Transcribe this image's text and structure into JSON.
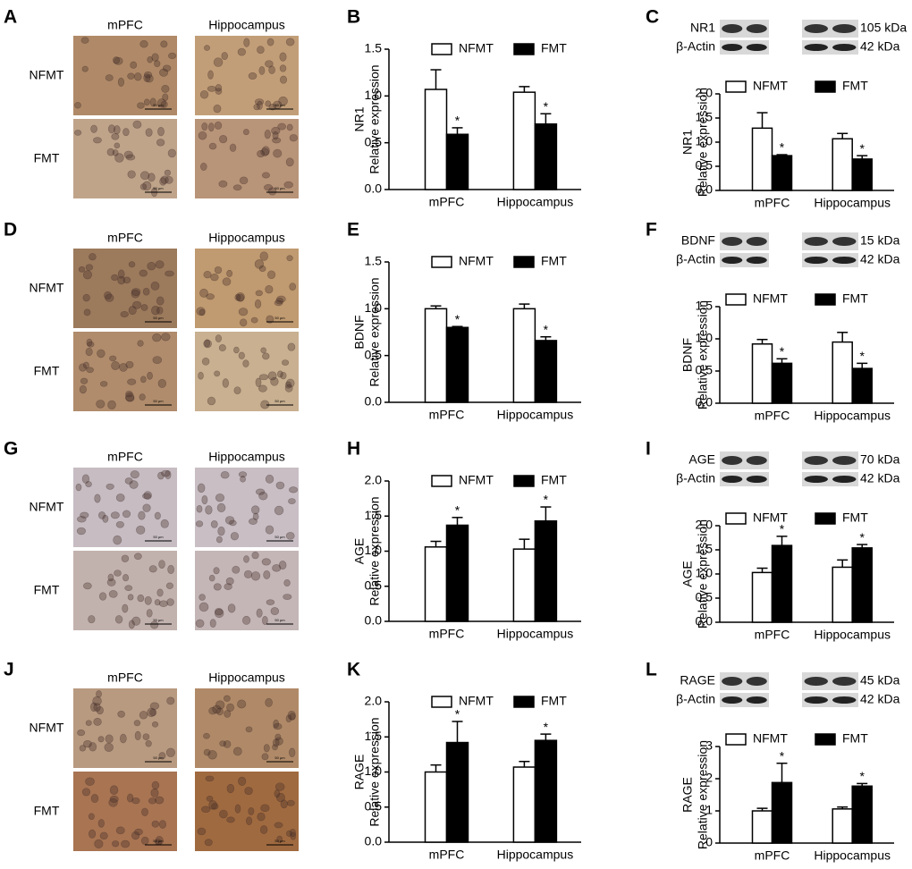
{
  "histology": [
    {
      "letter": "A",
      "columns": [
        "mPFC",
        "Hippocampus"
      ],
      "rows": [
        "NFMT",
        "FMT"
      ],
      "scale_bar": "50 μm",
      "tint": [
        "#b08a68",
        "#c29e78",
        "#bfa48a",
        "#b89478"
      ]
    },
    {
      "letter": "D",
      "columns": [
        "mPFC",
        "Hippocampus"
      ],
      "rows": [
        "NFMT",
        "FMT"
      ],
      "scale_bar": "50 μm",
      "tint": [
        "#9c7a5c",
        "#c09a70",
        "#b08c6c",
        "#c8b090"
      ]
    },
    {
      "letter": "G",
      "columns": [
        "mPFC",
        "Hippocampus"
      ],
      "rows": [
        "NFMT",
        "FMT"
      ],
      "scale_bar": "50 μm",
      "tint": [
        "#c6bcc2",
        "#c8bec4",
        "#c2b2ae",
        "#c4b6b6"
      ]
    },
    {
      "letter": "J",
      "columns": [
        "mPFC",
        "Hippocampus"
      ],
      "rows": [
        "NFMT",
        "FMT"
      ],
      "scale_bar": "50 μm",
      "tint": [
        "#b89a80",
        "#b08a68",
        "#a87452",
        "#a06a40"
      ]
    }
  ],
  "blots": [
    {
      "target": "NR1",
      "target_size": "105 kDa",
      "control": "β-Actin",
      "control_size": "42 kDa"
    },
    {
      "target": "BDNF",
      "target_size": "15 kDa",
      "control": "β-Actin",
      "control_size": "42 kDa"
    },
    {
      "target": "AGE",
      "target_size": "70 kDa",
      "control": "β-Actin",
      "control_size": "42 kDa"
    },
    {
      "target": "RAGE",
      "target_size": "45 kDa",
      "control": "β-Actin",
      "control_size": "42 kDa"
    }
  ],
  "chart_data": [
    {
      "type": "bar",
      "letter": "B",
      "ylabel": [
        "NR1",
        "Relative expression"
      ],
      "categories": [
        "mPFC",
        "Hippocampus"
      ],
      "ylim": [
        0,
        1.5
      ],
      "yticks": [
        {
          "value": 0,
          "label": "0.0"
        },
        0.5,
        {
          "value": 1,
          "label": "1.0"
        },
        1.5
      ],
      "series": [
        {
          "name": "NFMT",
          "color": "#ffffff",
          "values": [
            1.07,
            1.04
          ],
          "errors": [
            0.21,
            0.06
          ]
        },
        {
          "name": "FMT",
          "color": "#000000",
          "values": [
            0.59,
            0.7
          ],
          "errors": [
            0.07,
            0.11
          ],
          "annotations": [
            "*",
            "*"
          ]
        }
      ]
    },
    {
      "type": "bar",
      "letter": "C",
      "ylabel": [
        "NR1",
        "Relative expression"
      ],
      "categories": [
        "mPFC",
        "Hippocampus"
      ],
      "ylim": [
        0,
        2
      ],
      "yticks": [
        {
          "value": 0,
          "label": "0.0"
        },
        0.5,
        {
          "value": 1,
          "label": "1.0"
        },
        1.5,
        {
          "value": 2,
          "label": "2.0"
        }
      ],
      "series": [
        {
          "name": "NFMT",
          "color": "#ffffff",
          "values": [
            1.29,
            1.07
          ],
          "errors": [
            0.32,
            0.11
          ]
        },
        {
          "name": "FMT",
          "color": "#000000",
          "values": [
            0.72,
            0.65
          ],
          "errors": [
            0.02,
            0.07
          ],
          "annotations": [
            "*",
            "*"
          ]
        }
      ]
    },
    {
      "type": "bar",
      "letter": "E",
      "ylabel": [
        "BDNF",
        "Relative expression"
      ],
      "categories": [
        "mPFC",
        "Hippocampus"
      ],
      "ylim": [
        0,
        1.5
      ],
      "yticks": [
        {
          "value": 0,
          "label": "0.0"
        },
        0.5,
        {
          "value": 1,
          "label": "1.0"
        },
        1.5
      ],
      "series": [
        {
          "name": "NFMT",
          "color": "#ffffff",
          "values": [
            1.0,
            1.0
          ],
          "errors": [
            0.03,
            0.05
          ]
        },
        {
          "name": "FMT",
          "color": "#000000",
          "values": [
            0.8,
            0.66
          ],
          "errors": [
            0.01,
            0.04
          ],
          "annotations": [
            "*",
            "*"
          ]
        }
      ]
    },
    {
      "type": "bar",
      "letter": "F",
      "ylabel": [
        "BDNF",
        "Relative expression"
      ],
      "categories": [
        "mPFC",
        "Hippocampus"
      ],
      "ylim": [
        0,
        1.5
      ],
      "yticks": [
        {
          "value": 0,
          "label": "0.0"
        },
        0.5,
        {
          "value": 1,
          "label": "1.0"
        },
        1.5
      ],
      "series": [
        {
          "name": "NFMT",
          "color": "#ffffff",
          "values": [
            0.92,
            0.95
          ],
          "errors": [
            0.07,
            0.15
          ]
        },
        {
          "name": "FMT",
          "color": "#000000",
          "values": [
            0.62,
            0.54
          ],
          "errors": [
            0.07,
            0.08
          ],
          "annotations": [
            "*",
            "*"
          ]
        }
      ]
    },
    {
      "type": "bar",
      "letter": "H",
      "ylabel": [
        "AGE",
        "Relative expression"
      ],
      "categories": [
        "mPFC",
        "Hippocampus"
      ],
      "ylim": [
        0,
        2
      ],
      "yticks": [
        {
          "value": 0,
          "label": "0.0"
        },
        0.5,
        {
          "value": 1,
          "label": "1.0"
        },
        1.5,
        {
          "value": 2,
          "label": "2.0"
        }
      ],
      "series": [
        {
          "name": "NFMT",
          "color": "#ffffff",
          "values": [
            1.06,
            1.03
          ],
          "errors": [
            0.08,
            0.14
          ]
        },
        {
          "name": "FMT",
          "color": "#000000",
          "values": [
            1.37,
            1.43
          ],
          "errors": [
            0.11,
            0.2
          ],
          "annotations": [
            "*",
            "*"
          ]
        }
      ]
    },
    {
      "type": "bar",
      "letter": "I",
      "ylabel": [
        "AGE",
        "Relative expression"
      ],
      "categories": [
        "mPFC",
        "Hippocampus"
      ],
      "ylim": [
        0,
        2
      ],
      "yticks": [
        {
          "value": 0,
          "label": "0.0"
        },
        0.5,
        {
          "value": 1,
          "label": "1.0"
        },
        1.5,
        {
          "value": 2,
          "label": "2.0"
        }
      ],
      "series": [
        {
          "name": "NFMT",
          "color": "#ffffff",
          "values": [
            1.03,
            1.14
          ],
          "errors": [
            0.09,
            0.15
          ]
        },
        {
          "name": "FMT",
          "color": "#000000",
          "values": [
            1.59,
            1.54
          ],
          "errors": [
            0.19,
            0.07
          ],
          "annotations": [
            "*",
            "*"
          ]
        }
      ]
    },
    {
      "type": "bar",
      "letter": "K",
      "ylabel": [
        "RAGE",
        "Relative expression"
      ],
      "categories": [
        "mPFC",
        "Hippocampus"
      ],
      "ylim": [
        0,
        2
      ],
      "yticks": [
        {
          "value": 0,
          "label": "0.0"
        },
        0.5,
        {
          "value": 1,
          "label": "1.0"
        },
        1.5,
        {
          "value": 2,
          "label": "2.0"
        }
      ],
      "series": [
        {
          "name": "NFMT",
          "color": "#ffffff",
          "values": [
            1.0,
            1.07
          ],
          "errors": [
            0.1,
            0.08
          ]
        },
        {
          "name": "FMT",
          "color": "#000000",
          "values": [
            1.42,
            1.45
          ],
          "errors": [
            0.3,
            0.09
          ],
          "annotations": [
            "*",
            "*"
          ]
        }
      ]
    },
    {
      "type": "bar",
      "letter": "L",
      "ylabel": [
        "RAGE",
        "Relative expression"
      ],
      "categories": [
        "mPFC",
        "Hippocampus"
      ],
      "ylim": [
        0,
        3
      ],
      "yticks": [
        0,
        1,
        2,
        3
      ],
      "series": [
        {
          "name": "NFMT",
          "color": "#ffffff",
          "values": [
            1.0,
            1.06
          ],
          "errors": [
            0.08,
            0.06
          ]
        },
        {
          "name": "FMT",
          "color": "#000000",
          "values": [
            1.88,
            1.77
          ],
          "errors": [
            0.6,
            0.08
          ],
          "annotations": [
            "*",
            "*"
          ]
        }
      ]
    }
  ]
}
